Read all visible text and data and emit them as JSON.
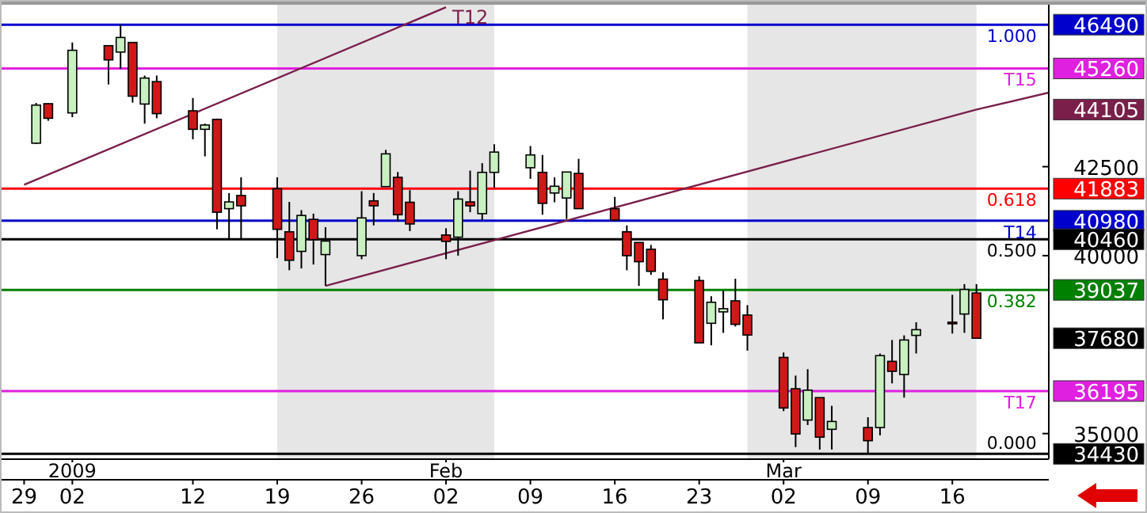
{
  "chart_data": {
    "type": "candlestick",
    "x": [
      "2008-12-30",
      "2008-12-31",
      "2009-01-02",
      "2009-01-05",
      "2009-01-06",
      "2009-01-07",
      "2009-01-08",
      "2009-01-09",
      "2009-01-12",
      "2009-01-13",
      "2009-01-14",
      "2009-01-15",
      "2009-01-16",
      "2009-01-19",
      "2009-01-20",
      "2009-01-21",
      "2009-01-22",
      "2009-01-23",
      "2009-01-26",
      "2009-01-27",
      "2009-01-28",
      "2009-01-29",
      "2009-01-30",
      "2009-02-02",
      "2009-02-03",
      "2009-02-04",
      "2009-02-05",
      "2009-02-06",
      "2009-02-09",
      "2009-02-10",
      "2009-02-11",
      "2009-02-12",
      "2009-02-13",
      "2009-02-16",
      "2009-02-17",
      "2009-02-18",
      "2009-02-19",
      "2009-02-20",
      "2009-02-23",
      "2009-02-24",
      "2009-02-25",
      "2009-02-26",
      "2009-02-27",
      "2009-03-02",
      "2009-03-03",
      "2009-03-04",
      "2009-03-05",
      "2009-03-06",
      "2009-03-09",
      "2009-03-10",
      "2009-03-11",
      "2009-03-12",
      "2009-03-13",
      "2009-03-16",
      "2009-03-17",
      "2009-03-18"
    ],
    "ohlc": [
      [
        43160,
        44290,
        43140,
        44230
      ],
      [
        44270,
        44290,
        43790,
        43860
      ],
      [
        44010,
        45990,
        43890,
        45770
      ],
      [
        45900,
        45910,
        44810,
        45500
      ],
      [
        45720,
        46490,
        45250,
        46130
      ],
      [
        45990,
        46000,
        44300,
        44480
      ],
      [
        44260,
        45060,
        43710,
        44990
      ],
      [
        44890,
        45060,
        43860,
        43990
      ],
      [
        44070,
        44430,
        43270,
        43550
      ],
      [
        43550,
        43710,
        42790,
        43670
      ],
      [
        43830,
        43850,
        40740,
        41220
      ],
      [
        41320,
        41760,
        40450,
        41510
      ],
      [
        41690,
        42200,
        40450,
        41400
      ],
      [
        41880,
        42200,
        39930,
        40740
      ],
      [
        40670,
        41510,
        39590,
        39870
      ],
      [
        40120,
        41280,
        39640,
        41130
      ],
      [
        41020,
        41180,
        39750,
        40450
      ],
      [
        40030,
        40800,
        39150,
        40410
      ],
      [
        40000,
        41810,
        39900,
        41060
      ],
      [
        41540,
        41760,
        40850,
        41400
      ],
      [
        41940,
        42970,
        41940,
        42860
      ],
      [
        42200,
        42350,
        40960,
        41150
      ],
      [
        41500,
        41840,
        40690,
        40890
      ],
      [
        40580,
        40770,
        39900,
        40400
      ],
      [
        40520,
        41810,
        40000,
        41590
      ],
      [
        41510,
        42390,
        41220,
        41400
      ],
      [
        41180,
        42600,
        41000,
        42340
      ],
      [
        42340,
        43130,
        41910,
        42910
      ],
      [
        42470,
        43080,
        42160,
        42830
      ],
      [
        42340,
        42830,
        41150,
        41470
      ],
      [
        41760,
        42200,
        41500,
        41950
      ],
      [
        41620,
        42350,
        41030,
        42350
      ],
      [
        42310,
        42720,
        41320,
        41320
      ],
      [
        41320,
        41650,
        40980,
        41000
      ],
      [
        40670,
        40850,
        39590,
        40000
      ],
      [
        40370,
        40370,
        39150,
        39830
      ],
      [
        40180,
        40300,
        39460,
        39560
      ],
      [
        39340,
        39530,
        38210,
        38760
      ],
      [
        39300,
        39420,
        37550,
        37550
      ],
      [
        38100,
        38860,
        37480,
        38690
      ],
      [
        38420,
        39020,
        37830,
        38510
      ],
      [
        38730,
        39350,
        38010,
        38070
      ],
      [
        38330,
        38610,
        37330,
        37770
      ],
      [
        37140,
        37280,
        35630,
        35720
      ],
      [
        36260,
        36630,
        34620,
        34990
      ],
      [
        35380,
        36810,
        35240,
        36220
      ],
      [
        36010,
        36010,
        34550,
        34900
      ],
      [
        35120,
        35780,
        34550,
        35340
      ],
      [
        35170,
        35460,
        34430,
        34800
      ],
      [
        35170,
        37250,
        34950,
        37190
      ],
      [
        37030,
        37630,
        36410,
        36750
      ],
      [
        36660,
        37760,
        36010,
        37630
      ],
      [
        37760,
        38130,
        37250,
        37920
      ],
      [
        38130,
        38900,
        37810,
        38120
      ],
      [
        38360,
        39200,
        37830,
        39050
      ],
      [
        38950,
        39200,
        37680,
        37680
      ]
    ],
    "series": [
      {
        "type": "line",
        "name": "T12",
        "color": "#7a1f4a",
        "x": [
          "2008-12-29",
          "2009-02-02"
        ],
        "values": [
          41990,
          46980
        ]
      },
      {
        "type": "line",
        "color": "#7a1f4a",
        "x": [
          "2009-01-23",
          "2009-03-18",
          "2009-03-24"
        ],
        "values": [
          39150,
          44105,
          44580
        ]
      }
    ],
    "ref_lines": [
      {
        "axis": "y",
        "value": 46490,
        "label": "46490",
        "color": "#0000cc"
      },
      {
        "axis": "y",
        "value": 45260,
        "label": "45260",
        "color": "#e020e0"
      },
      {
        "axis": "y",
        "value": 41883,
        "label": "41883",
        "color": "#ff0000"
      },
      {
        "axis": "y",
        "value": 40980,
        "label": "40980",
        "color": "#0000cc"
      },
      {
        "axis": "y",
        "value": 40460,
        "label": "40460",
        "color": "#000000"
      },
      {
        "axis": "y",
        "value": 39037,
        "label": "39037",
        "color": "#008000"
      },
      {
        "axis": "y",
        "value": 36195,
        "label": "36195",
        "color": "#e020e0"
      },
      {
        "axis": "y",
        "value": 34430,
        "label": "34430",
        "color": "#000000"
      }
    ],
    "bands": [
      {
        "axis": "x",
        "from": "2009-01-19",
        "to": "2009-02-06",
        "color": "#e6e6e6"
      },
      {
        "axis": "x",
        "from": "2009-02-27",
        "to": "2009-03-18",
        "color": "#e6e6e6"
      }
    ],
    "xlim": [
      "2008-12-27",
      "2009-03-24"
    ],
    "ylim": [
      34250,
      47050
    ],
    "yticks": [
      35000,
      40000,
      42500
    ],
    "xticks": [
      {
        "value": "2008-12-29",
        "label": "29"
      },
      {
        "value": "2009-01-02",
        "label": "02"
      },
      {
        "value": "2009-01-12",
        "label": "12"
      },
      {
        "value": "2009-01-19",
        "label": "19"
      },
      {
        "value": "2009-01-26",
        "label": "26"
      },
      {
        "value": "2009-02-02",
        "label": "02"
      },
      {
        "value": "2009-02-09",
        "label": "09"
      },
      {
        "value": "2009-02-16",
        "label": "16"
      },
      {
        "value": "2009-02-23",
        "label": "23"
      },
      {
        "value": "2009-03-02",
        "label": "02"
      },
      {
        "value": "2009-03-09",
        "label": "09"
      },
      {
        "value": "2009-03-16",
        "label": "16"
      }
    ],
    "x2lim": [
      "2008-12-27",
      "2009-03-24"
    ],
    "x2ticks": [
      {
        "value": "2009-01-02",
        "label": "2009"
      },
      {
        "value": "2009-02-02",
        "label": "Feb"
      },
      {
        "value": "2009-03-02",
        "label": "Mar"
      }
    ],
    "annotations": [
      "44105",
      "37680",
      {
        "text": "1.000",
        "x": "2009-03-23",
        "y": 46490
      },
      {
        "text": "T15",
        "x": "2009-03-23",
        "y": 45260
      },
      {
        "text": "0.618",
        "x": "2009-03-23",
        "y": 41883
      },
      {
        "text": "T14",
        "x": "2009-03-23",
        "y": 40980
      },
      {
        "text": "0.500",
        "x": "2009-03-23",
        "y": 40460
      },
      {
        "text": "0.382",
        "x": "2009-03-23",
        "y": 39037
      },
      {
        "text": "T17",
        "x": "2009-03-23",
        "y": 36195
      },
      {
        "text": "0.000",
        "x": "2009-03-23",
        "y": 34430
      }
    ]
  }
}
